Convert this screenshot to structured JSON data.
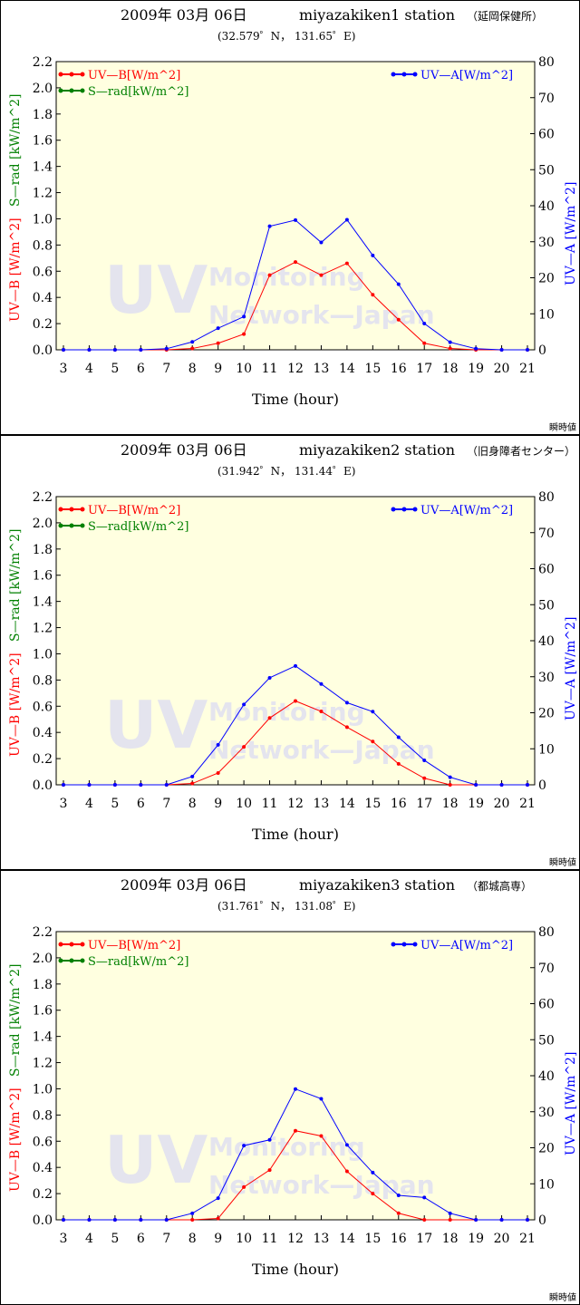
{
  "x_axis_title": "Time (hour)",
  "note": "瞬時値",
  "watermark": {
    "big": "UV",
    "line1": "Monitoring",
    "line2": "Network—Japan"
  },
  "y_left_label_uvb": "UV—B [W/m^2]",
  "y_left_label_srad": "S—rad [kW/m^2]",
  "y_right_label": "UV—A [W/m^2]",
  "legend": {
    "uvb": "UV—B[W/m^2]",
    "srad": "S—rad[kW/m^2]",
    "uva": "UV—A[W/m^2]"
  },
  "colors": {
    "uvb": "#ff0000",
    "srad": "#008000",
    "uva": "#0000ff",
    "plot_bg": "#ffffe0"
  },
  "panels": [
    {
      "date": "2009年 03月 06日",
      "station": "miyazakiken1 station",
      "place": "（延岡保健所）",
      "coords": "(32.579゜N， 131.65゜E)"
    },
    {
      "date": "2009年 03月 06日",
      "station": "miyazakiken2 station",
      "place": "（旧身障者センター）",
      "coords": "(31.942゜N， 131.44゜E)"
    },
    {
      "date": "2009年 03月 06日",
      "station": "miyazakiken3 station",
      "place": "（都城高専）",
      "coords": "(31.761゜N， 131.08゜E)"
    }
  ],
  "chart_data": [
    {
      "type": "line",
      "x": [
        3,
        4,
        5,
        6,
        7,
        8,
        9,
        10,
        11,
        12,
        13,
        14,
        15,
        16,
        17,
        18,
        19,
        20,
        21
      ],
      "xlim": [
        3,
        21
      ],
      "xlabel": "Time (hour)",
      "ylim_left": [
        0,
        2.2
      ],
      "yticks_left": [
        "0.0",
        "0.2",
        "0.4",
        "0.6",
        "0.8",
        "1.0",
        "1.2",
        "1.4",
        "1.6",
        "1.8",
        "2.0",
        "2.2"
      ],
      "ylim_right": [
        0,
        80
      ],
      "yticks_right": [
        "0",
        "10",
        "20",
        "30",
        "40",
        "50",
        "60",
        "70",
        "80"
      ],
      "series": [
        {
          "name": "UV—B[W/m^2]",
          "axis": "left",
          "values": [
            0,
            0,
            0,
            0,
            0,
            0.01,
            0.05,
            0.12,
            0.57,
            0.67,
            0.57,
            0.66,
            0.42,
            0.23,
            0.05,
            0.01,
            0,
            0,
            0
          ]
        },
        {
          "name": "UV—A[W/m^2]",
          "axis": "right",
          "values": [
            0,
            0,
            0,
            0,
            0.3,
            2.2,
            6,
            9.2,
            34.3,
            36,
            29.8,
            36.1,
            26.2,
            18.2,
            7.3,
            2.1,
            0.3,
            0,
            0
          ]
        }
      ]
    },
    {
      "type": "line",
      "x": [
        3,
        4,
        5,
        6,
        7,
        8,
        9,
        10,
        11,
        12,
        13,
        14,
        15,
        16,
        17,
        18,
        19,
        20,
        21
      ],
      "xlim": [
        3,
        21
      ],
      "xlabel": "Time (hour)",
      "ylim_left": [
        0,
        2.2
      ],
      "yticks_left": [
        "0.0",
        "0.2",
        "0.4",
        "0.6",
        "0.8",
        "1.0",
        "1.2",
        "1.4",
        "1.6",
        "1.8",
        "2.0",
        "2.2"
      ],
      "ylim_right": [
        0,
        80
      ],
      "yticks_right": [
        "0",
        "10",
        "20",
        "30",
        "40",
        "50",
        "60",
        "70",
        "80"
      ],
      "series": [
        {
          "name": "UV—B[W/m^2]",
          "axis": "left",
          "values": [
            0,
            0,
            0,
            0,
            0,
            0.01,
            0.09,
            0.29,
            0.51,
            0.64,
            0.56,
            0.44,
            0.33,
            0.16,
            0.05,
            0,
            0,
            0,
            0
          ]
        },
        {
          "name": "UV—A[W/m^2]",
          "axis": "right",
          "values": [
            0,
            0,
            0,
            0,
            0,
            2.3,
            11.1,
            22.3,
            29.7,
            33,
            28,
            22.8,
            20.3,
            13.2,
            6.8,
            2.1,
            0,
            0,
            0
          ]
        }
      ]
    },
    {
      "type": "line",
      "x": [
        3,
        4,
        5,
        6,
        7,
        8,
        9,
        10,
        11,
        12,
        13,
        14,
        15,
        16,
        17,
        18,
        19,
        20,
        21
      ],
      "xlim": [
        3,
        21
      ],
      "xlabel": "Time (hour)",
      "ylim_left": [
        0,
        2.2
      ],
      "yticks_left": [
        "0.0",
        "0.2",
        "0.4",
        "0.6",
        "0.8",
        "1.0",
        "1.2",
        "1.4",
        "1.6",
        "1.8",
        "2.0",
        "2.2"
      ],
      "ylim_right": [
        0,
        80
      ],
      "yticks_right": [
        "0",
        "10",
        "20",
        "30",
        "40",
        "50",
        "60",
        "70",
        "80"
      ],
      "series": [
        {
          "name": "UV—B[W/m^2]",
          "axis": "left",
          "values": [
            0,
            0,
            0,
            0,
            0,
            0,
            0.01,
            0.25,
            0.38,
            0.68,
            0.64,
            0.37,
            0.2,
            0.05,
            0,
            0,
            0,
            0,
            0
          ]
        },
        {
          "name": "UV—A[W/m^2]",
          "axis": "right",
          "values": [
            0,
            0,
            0,
            0,
            0,
            1.8,
            6,
            20.6,
            22.2,
            36.3,
            33.6,
            20.8,
            13.1,
            6.8,
            6.2,
            1.8,
            0,
            0,
            0
          ]
        }
      ]
    }
  ]
}
